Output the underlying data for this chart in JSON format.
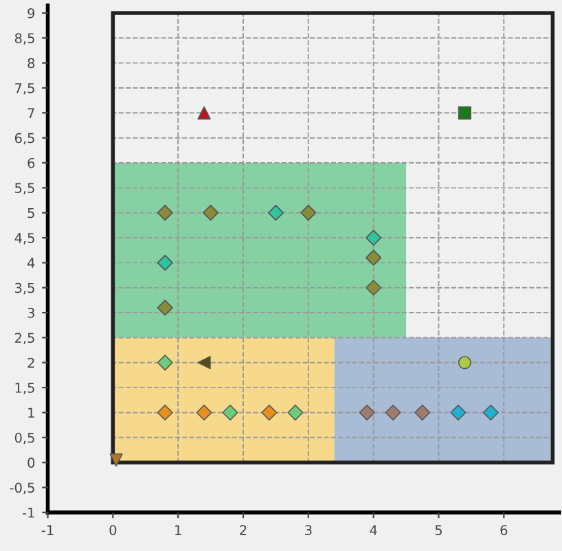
{
  "chart_data": {
    "type": "scatter",
    "xlim": [
      -1,
      6.85
    ],
    "ylim": [
      -1,
      9.15
    ],
    "xticks": [
      -1,
      0,
      1,
      2,
      3,
      4,
      5,
      6
    ],
    "yticks": [
      -1,
      {
        "value": -0.5,
        "label": "-0,5"
      },
      0,
      {
        "value": 0.5,
        "label": "0,5"
      },
      1,
      {
        "value": 1.5,
        "label": "1,5"
      },
      2,
      {
        "value": 2.5,
        "label": "2,5"
      },
      3,
      {
        "value": 3.5,
        "label": "3,5"
      },
      4,
      {
        "value": 4.5,
        "label": "4,5"
      },
      5,
      {
        "value": 5.5,
        "label": "5,5"
      },
      6,
      {
        "value": 6.5,
        "label": "6,5"
      },
      7,
      {
        "value": 7.5,
        "label": "7,5"
      },
      8,
      {
        "value": 8.5,
        "label": "8,5"
      },
      9
    ],
    "grid": true,
    "line_style": "dashed",
    "series": [
      {
        "type": "area",
        "color": "#86d1a3",
        "x": [
          0,
          0,
          4.5,
          4.5
        ],
        "values": [
          2.5,
          6,
          6,
          2.5
        ]
      },
      {
        "type": "area",
        "color": "#f7d98c",
        "x": [
          0,
          0,
          3.4,
          3.4
        ],
        "values": [
          0,
          2.5,
          2.5,
          0
        ]
      },
      {
        "type": "area",
        "color": "#a8bcd6",
        "x": [
          3.4,
          3.4,
          6.75,
          6.75
        ],
        "values": [
          0,
          2.5,
          2.5,
          0
        ]
      },
      {
        "type": "scatter",
        "color": "#c0141e",
        "marker": "triangle",
        "x": [
          1.4
        ],
        "values": [
          7
        ]
      },
      {
        "type": "scatter",
        "color": "#1a7a1a",
        "marker": "square",
        "x": [
          5.4
        ],
        "values": [
          7
        ]
      },
      {
        "type": "scatter",
        "color": "#8b8b3c",
        "marker": "diamond",
        "x": [
          0.8,
          1.5,
          3,
          4,
          4,
          0.8
        ],
        "values": [
          5,
          5,
          5,
          4.1,
          3.5,
          3.1
        ]
      },
      {
        "type": "scatter",
        "color": "#2ec4a0",
        "marker": "diamond",
        "x": [
          2.5,
          4,
          0.8
        ],
        "values": [
          5,
          4.5,
          4
        ]
      },
      {
        "type": "scatter",
        "color": "#6ccc7a",
        "marker": "diamond",
        "x": [
          0.8,
          1.8,
          2.8
        ],
        "values": [
          2,
          1,
          1
        ]
      },
      {
        "type": "scatter",
        "color": "#5a4a10",
        "marker": "triangle_left",
        "x": [
          1.4
        ],
        "values": [
          2
        ]
      },
      {
        "type": "scatter",
        "color": "#e8901e",
        "marker": "diamond",
        "x": [
          0.8,
          1.4,
          2.4
        ],
        "values": [
          1,
          1,
          1
        ]
      },
      {
        "type": "scatter",
        "color": "#a07c6a",
        "marker": "diamond",
        "x": [
          3.9,
          4.3,
          4.75
        ],
        "values": [
          1,
          1,
          1
        ]
      },
      {
        "type": "scatter",
        "color": "#22b0d0",
        "marker": "diamond",
        "x": [
          5.3,
          5.8
        ],
        "values": [
          1,
          1
        ]
      },
      {
        "type": "scatter",
        "color": "#aacc44",
        "marker": "circle",
        "x": [
          5.4
        ],
        "values": [
          2
        ]
      },
      {
        "type": "scatter",
        "color": "#b07820",
        "marker": "triangle_down",
        "x": [
          0.05
        ],
        "values": [
          0.05
        ]
      }
    ]
  }
}
